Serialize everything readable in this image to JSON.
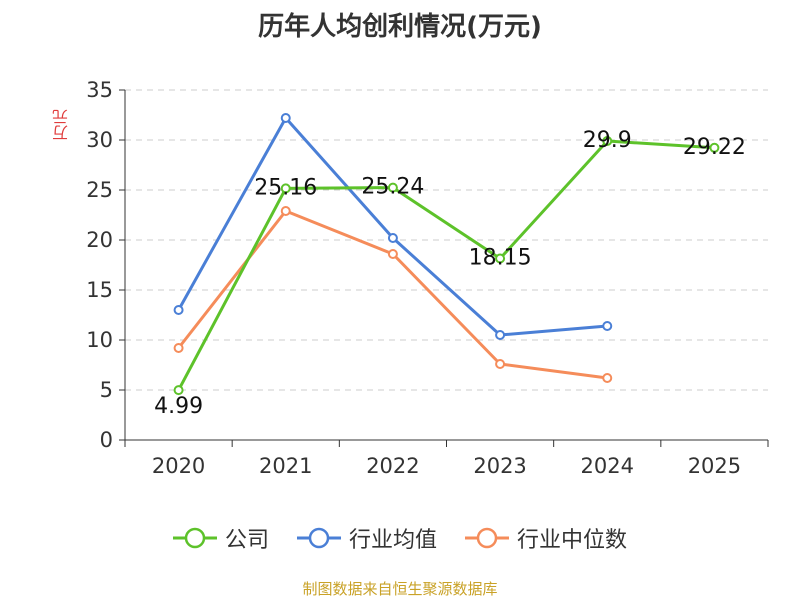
{
  "chart_data": {
    "type": "line",
    "title": "历年人均创利情况(万元)",
    "ylabel": "万元",
    "xlabel": "",
    "categories": [
      "2020",
      "2021",
      "2022",
      "2023",
      "2024",
      "2025"
    ],
    "ylim": [
      0,
      35
    ],
    "yticks": [
      0,
      5,
      10,
      15,
      20,
      25,
      30,
      35
    ],
    "grid": true,
    "legend_position": "bottom",
    "series": [
      {
        "name": "公司",
        "color": "#5dc22a",
        "values": [
          4.99,
          25.16,
          25.24,
          18.15,
          29.9,
          29.22
        ],
        "labels": [
          "4.99",
          "25.16",
          "25.24",
          "18.15",
          "29.9",
          "29.22"
        ]
      },
      {
        "name": "行业均值",
        "color": "#4a7fd6",
        "values": [
          13.0,
          32.2,
          20.2,
          10.5,
          11.4,
          null
        ]
      },
      {
        "name": "行业中位数",
        "color": "#f58c5a",
        "values": [
          9.2,
          22.9,
          18.6,
          7.6,
          6.2,
          null
        ]
      }
    ]
  },
  "footer": {
    "source": "制图数据来自恒生聚源数据库"
  }
}
